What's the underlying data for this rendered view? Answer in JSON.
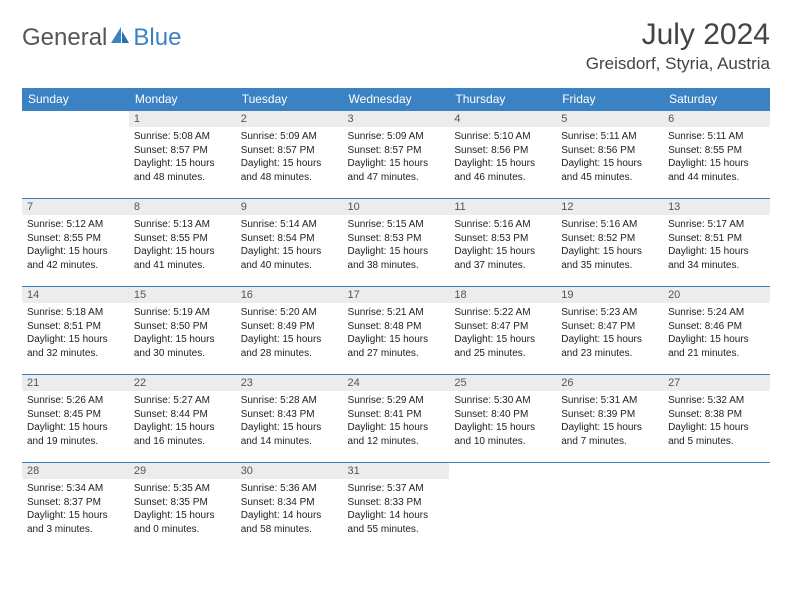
{
  "logo": {
    "text1": "General",
    "text2": "Blue"
  },
  "title": "July 2024",
  "location": "Greisdorf, Styria, Austria",
  "colors": {
    "header_bg": "#3b82c4",
    "header_text": "#ffffff",
    "daynum_bg": "#ececec",
    "border": "#3b82c4",
    "body_text": "#222222",
    "title_text": "#444444"
  },
  "weekdays": [
    "Sunday",
    "Monday",
    "Tuesday",
    "Wednesday",
    "Thursday",
    "Friday",
    "Saturday"
  ],
  "weeks": [
    [
      null,
      {
        "n": "1",
        "sr": "Sunrise: 5:08 AM",
        "ss": "Sunset: 8:57 PM",
        "dl": "Daylight: 15 hours and 48 minutes."
      },
      {
        "n": "2",
        "sr": "Sunrise: 5:09 AM",
        "ss": "Sunset: 8:57 PM",
        "dl": "Daylight: 15 hours and 48 minutes."
      },
      {
        "n": "3",
        "sr": "Sunrise: 5:09 AM",
        "ss": "Sunset: 8:57 PM",
        "dl": "Daylight: 15 hours and 47 minutes."
      },
      {
        "n": "4",
        "sr": "Sunrise: 5:10 AM",
        "ss": "Sunset: 8:56 PM",
        "dl": "Daylight: 15 hours and 46 minutes."
      },
      {
        "n": "5",
        "sr": "Sunrise: 5:11 AM",
        "ss": "Sunset: 8:56 PM",
        "dl": "Daylight: 15 hours and 45 minutes."
      },
      {
        "n": "6",
        "sr": "Sunrise: 5:11 AM",
        "ss": "Sunset: 8:55 PM",
        "dl": "Daylight: 15 hours and 44 minutes."
      }
    ],
    [
      {
        "n": "7",
        "sr": "Sunrise: 5:12 AM",
        "ss": "Sunset: 8:55 PM",
        "dl": "Daylight: 15 hours and 42 minutes."
      },
      {
        "n": "8",
        "sr": "Sunrise: 5:13 AM",
        "ss": "Sunset: 8:55 PM",
        "dl": "Daylight: 15 hours and 41 minutes."
      },
      {
        "n": "9",
        "sr": "Sunrise: 5:14 AM",
        "ss": "Sunset: 8:54 PM",
        "dl": "Daylight: 15 hours and 40 minutes."
      },
      {
        "n": "10",
        "sr": "Sunrise: 5:15 AM",
        "ss": "Sunset: 8:53 PM",
        "dl": "Daylight: 15 hours and 38 minutes."
      },
      {
        "n": "11",
        "sr": "Sunrise: 5:16 AM",
        "ss": "Sunset: 8:53 PM",
        "dl": "Daylight: 15 hours and 37 minutes."
      },
      {
        "n": "12",
        "sr": "Sunrise: 5:16 AM",
        "ss": "Sunset: 8:52 PM",
        "dl": "Daylight: 15 hours and 35 minutes."
      },
      {
        "n": "13",
        "sr": "Sunrise: 5:17 AM",
        "ss": "Sunset: 8:51 PM",
        "dl": "Daylight: 15 hours and 34 minutes."
      }
    ],
    [
      {
        "n": "14",
        "sr": "Sunrise: 5:18 AM",
        "ss": "Sunset: 8:51 PM",
        "dl": "Daylight: 15 hours and 32 minutes."
      },
      {
        "n": "15",
        "sr": "Sunrise: 5:19 AM",
        "ss": "Sunset: 8:50 PM",
        "dl": "Daylight: 15 hours and 30 minutes."
      },
      {
        "n": "16",
        "sr": "Sunrise: 5:20 AM",
        "ss": "Sunset: 8:49 PM",
        "dl": "Daylight: 15 hours and 28 minutes."
      },
      {
        "n": "17",
        "sr": "Sunrise: 5:21 AM",
        "ss": "Sunset: 8:48 PM",
        "dl": "Daylight: 15 hours and 27 minutes."
      },
      {
        "n": "18",
        "sr": "Sunrise: 5:22 AM",
        "ss": "Sunset: 8:47 PM",
        "dl": "Daylight: 15 hours and 25 minutes."
      },
      {
        "n": "19",
        "sr": "Sunrise: 5:23 AM",
        "ss": "Sunset: 8:47 PM",
        "dl": "Daylight: 15 hours and 23 minutes."
      },
      {
        "n": "20",
        "sr": "Sunrise: 5:24 AM",
        "ss": "Sunset: 8:46 PM",
        "dl": "Daylight: 15 hours and 21 minutes."
      }
    ],
    [
      {
        "n": "21",
        "sr": "Sunrise: 5:26 AM",
        "ss": "Sunset: 8:45 PM",
        "dl": "Daylight: 15 hours and 19 minutes."
      },
      {
        "n": "22",
        "sr": "Sunrise: 5:27 AM",
        "ss": "Sunset: 8:44 PM",
        "dl": "Daylight: 15 hours and 16 minutes."
      },
      {
        "n": "23",
        "sr": "Sunrise: 5:28 AM",
        "ss": "Sunset: 8:43 PM",
        "dl": "Daylight: 15 hours and 14 minutes."
      },
      {
        "n": "24",
        "sr": "Sunrise: 5:29 AM",
        "ss": "Sunset: 8:41 PM",
        "dl": "Daylight: 15 hours and 12 minutes."
      },
      {
        "n": "25",
        "sr": "Sunrise: 5:30 AM",
        "ss": "Sunset: 8:40 PM",
        "dl": "Daylight: 15 hours and 10 minutes."
      },
      {
        "n": "26",
        "sr": "Sunrise: 5:31 AM",
        "ss": "Sunset: 8:39 PM",
        "dl": "Daylight: 15 hours and 7 minutes."
      },
      {
        "n": "27",
        "sr": "Sunrise: 5:32 AM",
        "ss": "Sunset: 8:38 PM",
        "dl": "Daylight: 15 hours and 5 minutes."
      }
    ],
    [
      {
        "n": "28",
        "sr": "Sunrise: 5:34 AM",
        "ss": "Sunset: 8:37 PM",
        "dl": "Daylight: 15 hours and 3 minutes."
      },
      {
        "n": "29",
        "sr": "Sunrise: 5:35 AM",
        "ss": "Sunset: 8:35 PM",
        "dl": "Daylight: 15 hours and 0 minutes."
      },
      {
        "n": "30",
        "sr": "Sunrise: 5:36 AM",
        "ss": "Sunset: 8:34 PM",
        "dl": "Daylight: 14 hours and 58 minutes."
      },
      {
        "n": "31",
        "sr": "Sunrise: 5:37 AM",
        "ss": "Sunset: 8:33 PM",
        "dl": "Daylight: 14 hours and 55 minutes."
      },
      null,
      null,
      null
    ]
  ]
}
